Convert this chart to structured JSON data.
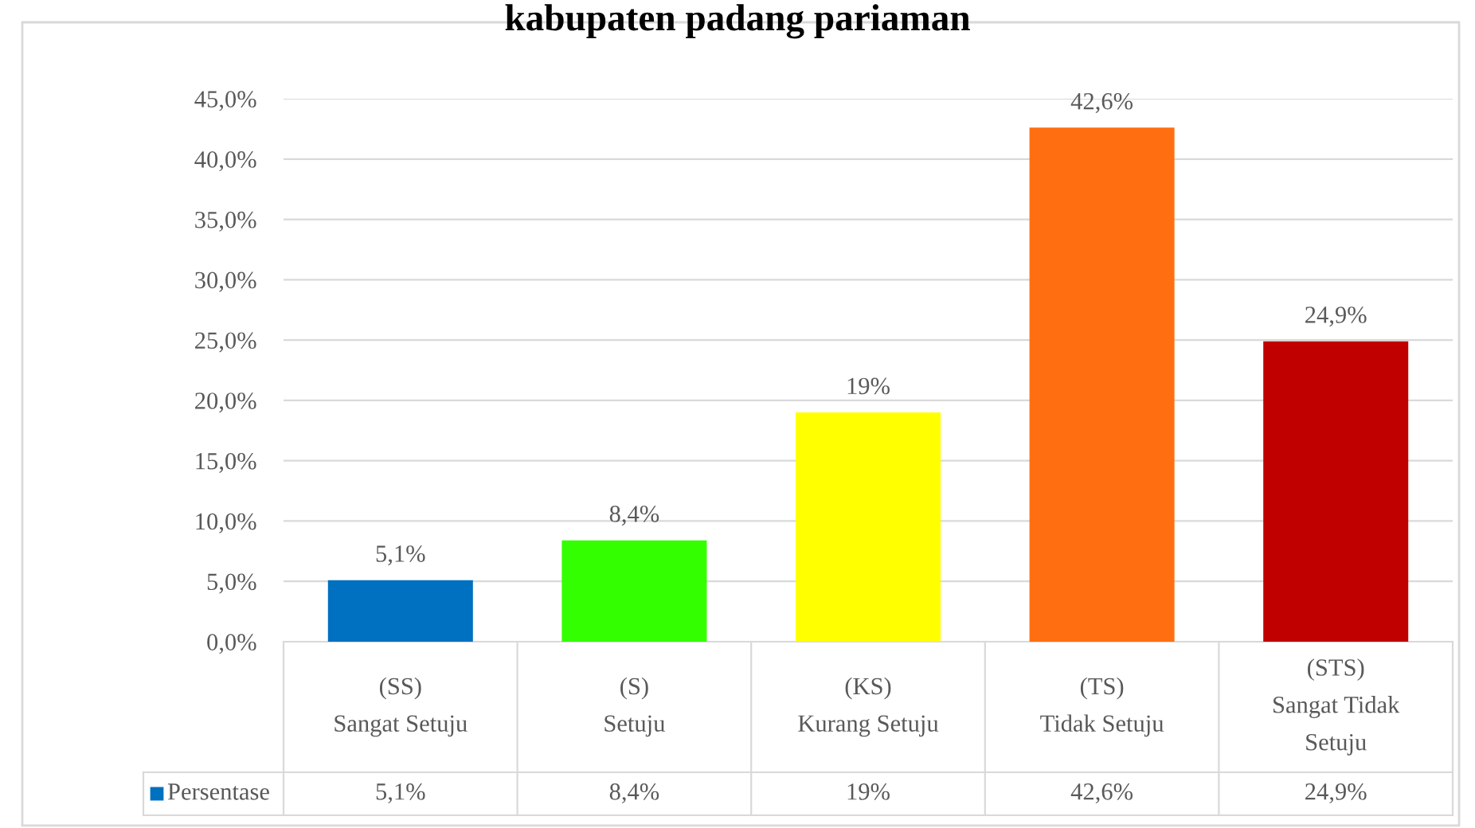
{
  "chart_data": {
    "type": "bar",
    "title": "kabupaten padang pariaman",
    "categories": [
      "(SS)\nSangat Setuju",
      "(S)\nSetuju",
      "(KS)\nKurang Setuju",
      "(TS)\nTidak Setuju",
      "(STS)\nSangat Tidak\nSetuju"
    ],
    "series": [
      {
        "name": "Persentase",
        "color": "#0070c0",
        "colors": [
          "#0070c0",
          "#33ff00",
          "#ffff00",
          "#ff6f11",
          "#c00000"
        ],
        "values": [
          5.1,
          8.4,
          19,
          42.6,
          24.9
        ],
        "value_labels": [
          "5,1%",
          "8,4%",
          "19%",
          "42,6%",
          "24,9%"
        ]
      }
    ],
    "ylim": [
      0,
      45
    ],
    "yticks": [
      {
        "value": 0,
        "label": "0,0%"
      },
      {
        "value": 5,
        "label": "5,0%"
      },
      {
        "value": 10,
        "label": "10,0%"
      },
      {
        "value": 15,
        "label": "15,0%"
      },
      {
        "value": 20,
        "label": "20,0%"
      },
      {
        "value": 25,
        "label": "25,0%"
      },
      {
        "value": 30,
        "label": "30,0%"
      },
      {
        "value": 35,
        "label": "35,0%"
      },
      {
        "value": 40,
        "label": "40,0%"
      },
      {
        "value": 45,
        "label": "45,0%"
      }
    ],
    "grid": "y",
    "legend": "bottom"
  }
}
